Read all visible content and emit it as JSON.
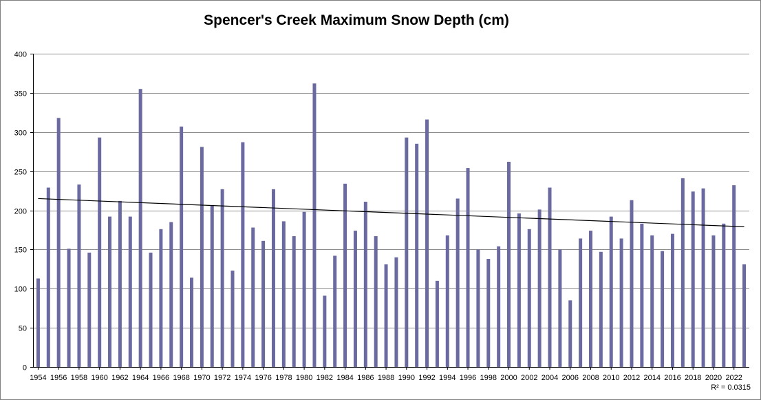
{
  "chart_data": {
    "type": "bar",
    "title": "Spencer's Creek Maximum Snow Depth (cm)",
    "xlabel": "",
    "ylabel": "",
    "ylim": [
      0,
      400
    ],
    "yticks": [
      0,
      50,
      100,
      150,
      200,
      250,
      300,
      350,
      400
    ],
    "grid": true,
    "legend": "none",
    "bar_color": "#6a6aa0",
    "trendline": {
      "type": "linear",
      "start_value": 215,
      "end_value": 179,
      "color": "#000000",
      "r2_label": "R² = 0.0315"
    },
    "categories": [
      "1954",
      "1955",
      "1956",
      "1957",
      "1958",
      "1959",
      "1960",
      "1961",
      "1962",
      "1963",
      "1964",
      "1965",
      "1966",
      "1967",
      "1968",
      "1969",
      "1970",
      "1971",
      "1972",
      "1973",
      "1974",
      "1975",
      "1976",
      "1977",
      "1978",
      "1979",
      "1980",
      "1981",
      "1982",
      "1983",
      "1984",
      "1985",
      "1986",
      "1987",
      "1988",
      "1989",
      "1990",
      "1991",
      "1992",
      "1993",
      "1994",
      "1995",
      "1996",
      "1997",
      "1998",
      "1999",
      "2000",
      "2001",
      "2002",
      "2003",
      "2004",
      "2005",
      "2006",
      "2007",
      "2008",
      "2009",
      "2010",
      "2011",
      "2012",
      "2013",
      "2014",
      "2015",
      "2016",
      "2017",
      "2018",
      "2019",
      "2020",
      "2021",
      "2022",
      "2023"
    ],
    "x_tick_labels": [
      "1954",
      "1956",
      "1958",
      "1960",
      "1962",
      "1964",
      "1966",
      "1968",
      "1970",
      "1972",
      "1974",
      "1976",
      "1978",
      "1980",
      "1982",
      "1984",
      "1986",
      "1988",
      "1990",
      "1992",
      "1994",
      "1996",
      "1998",
      "2000",
      "2002",
      "2004",
      "2006",
      "2008",
      "2010",
      "2012",
      "2014",
      "2016",
      "2018",
      "2020",
      "2022"
    ],
    "values": [
      113,
      229,
      318,
      151,
      233,
      146,
      293,
      192,
      212,
      192,
      355,
      146,
      176,
      185,
      307,
      114,
      281,
      206,
      227,
      123,
      287,
      178,
      161,
      227,
      186,
      167,
      198,
      362,
      91,
      142,
      234,
      174,
      211,
      167,
      131,
      140,
      293,
      285,
      316,
      110,
      168,
      215,
      254,
      150,
      138,
      154,
      262,
      196,
      176,
      201,
      229,
      150,
      85,
      164,
      174,
      147,
      192,
      164,
      213,
      183,
      168,
      148,
      170,
      241,
      224,
      228,
      168,
      183,
      232,
      131
    ]
  }
}
